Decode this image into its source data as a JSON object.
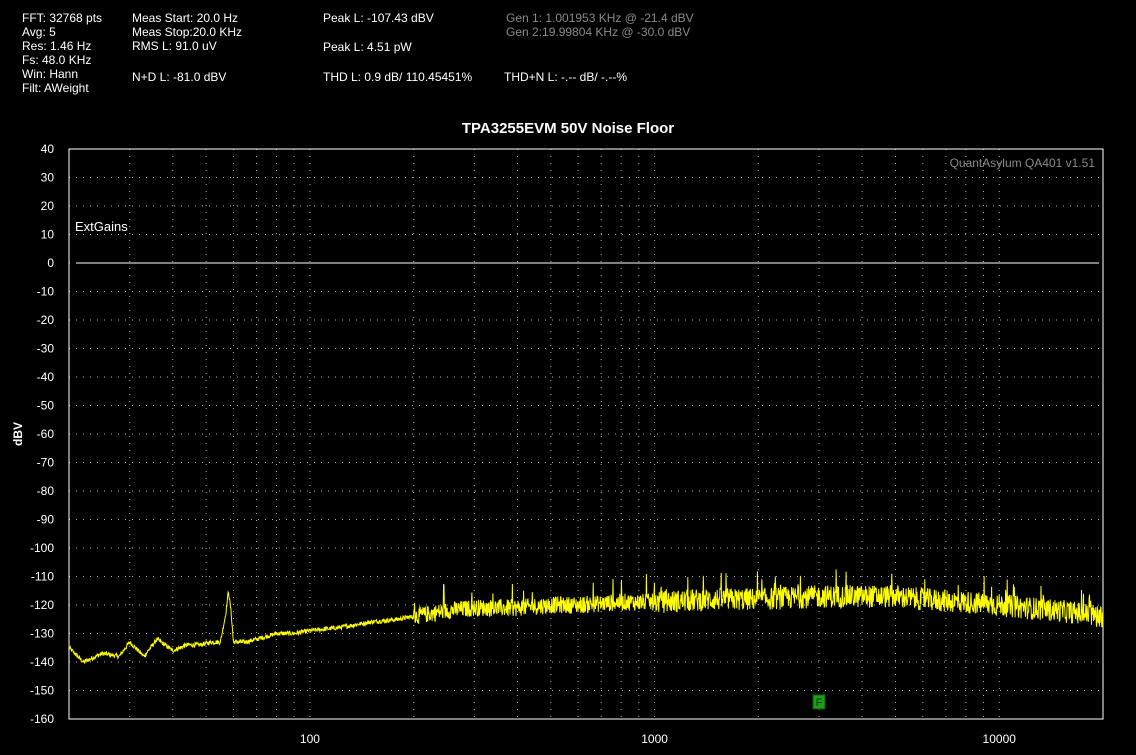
{
  "stats": {
    "col1": [
      "FFT: 32768 pts",
      "Avg: 5",
      "Res: 1.46 Hz",
      "Fs: 48.0 KHz",
      "Win: Hann",
      "Filt: AWeight"
    ],
    "meas_start": "Meas Start: 20.0 Hz",
    "meas_stop": "Meas Stop:20.0 KHz",
    "rms": "RMS L: 91.0 uV",
    "nd": "N+D L: -81.0 dBV",
    "peak_dbv": "Peak L: -107.43 dBV",
    "peak_pw": "Peak L: 4.51 pW",
    "thd": "THD L: 0.9 dB/ 110.45451%",
    "gen1": "Gen 1: 1.001953 KHz @ -21.4  dBV",
    "gen2": "Gen 2:19.99804 KHz @ -30.0  dBV",
    "thdn": "THD+N L: -.-- dB/ -.--%"
  },
  "colors": {
    "trace": "#ffff00",
    "grid": "#b4b4b4",
    "marker": "#1f9a1f",
    "background": "#000000"
  },
  "chart_data": {
    "type": "line",
    "title": "TPA3255EVM 50V Noise Floor",
    "ylabel": "dBV",
    "xlabel": "",
    "x_scale": "log",
    "xlim": [
      20,
      20000
    ],
    "ylim": [
      -160,
      40
    ],
    "y_ticks": [
      40,
      30,
      20,
      10,
      0,
      -10,
      -20,
      -30,
      -40,
      -50,
      -60,
      -70,
      -80,
      -90,
      -100,
      -110,
      -120,
      -130,
      -140,
      -150,
      -160
    ],
    "x_ticks": [
      100,
      1000,
      10000
    ],
    "x_tick_labels": [
      "100",
      "1000",
      "10000"
    ],
    "grid": true,
    "watermark": "QuantAsylum QA401 v1.51",
    "annotation": "ExtGains",
    "reference_line": {
      "name": "",
      "y": 0
    },
    "marker": {
      "label": "F",
      "x": 3000,
      "y": -154
    },
    "series": [
      {
        "name": "",
        "x": [
          20,
          22,
          25,
          28,
          30,
          33,
          36,
          40,
          44,
          48,
          52,
          55,
          57,
          58,
          59,
          60,
          62,
          65,
          70,
          75,
          80,
          90,
          100,
          120,
          150,
          180,
          200,
          250,
          300,
          400,
          500,
          600,
          800,
          1000,
          1500,
          2000,
          3000,
          4000,
          5000,
          6000,
          8000,
          10000,
          12000,
          15000,
          20000
        ],
        "y": [
          -135,
          -140,
          -137,
          -138,
          -133,
          -138,
          -132,
          -136,
          -134,
          -134,
          -133,
          -133,
          -123,
          -115,
          -122,
          -133,
          -133,
          -133,
          -132,
          -131,
          -130,
          -130,
          -129,
          -128,
          -126,
          -125,
          -124,
          -122,
          -121,
          -121,
          -120,
          -120,
          -119,
          -119,
          -118,
          -118,
          -117,
          -117,
          -117,
          -118,
          -119,
          -120,
          -121,
          -122,
          -124
        ]
      }
    ]
  }
}
